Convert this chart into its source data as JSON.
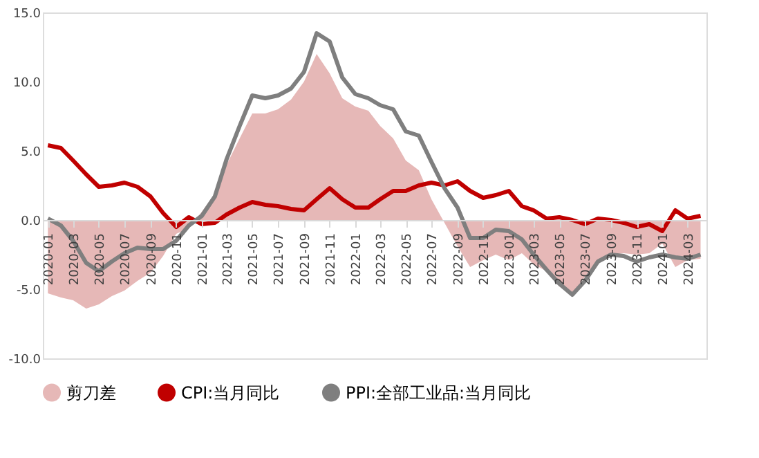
{
  "chart_data": {
    "type": "line",
    "x": [
      "2020-01",
      "2020-02",
      "2020-03",
      "2020-04",
      "2020-05",
      "2020-06",
      "2020-07",
      "2020-08",
      "2020-09",
      "2020-10",
      "2020-11",
      "2020-12",
      "2021-01",
      "2021-02",
      "2021-03",
      "2021-04",
      "2021-05",
      "2021-06",
      "2021-07",
      "2021-08",
      "2021-09",
      "2021-10",
      "2021-11",
      "2021-12",
      "2022-01",
      "2022-02",
      "2022-03",
      "2022-04",
      "2022-05",
      "2022-06",
      "2022-07",
      "2022-08",
      "2022-09",
      "2022-10",
      "2022-11",
      "2022-12",
      "2023-01",
      "2023-02",
      "2023-03",
      "2023-04",
      "2023-05",
      "2023-06",
      "2023-07",
      "2023-08",
      "2023-09",
      "2023-10",
      "2023-11",
      "2023-12",
      "2024-01",
      "2024-02",
      "2024-03",
      "2024-04"
    ],
    "series": [
      {
        "name": "剪刀差",
        "type": "area",
        "color": "#e6b8b7",
        "values": [
          -5.3,
          -5.6,
          -5.8,
          -6.4,
          -6.1,
          -5.5,
          -5.1,
          -4.4,
          -3.8,
          -2.6,
          -1.0,
          -0.6,
          0.6,
          1.9,
          4.0,
          5.9,
          7.7,
          7.7,
          8.0,
          8.7,
          10.0,
          12.0,
          10.6,
          8.8,
          8.2,
          7.9,
          6.8,
          5.9,
          4.3,
          3.6,
          1.5,
          -0.2,
          -1.9,
          -3.4,
          -2.9,
          -2.5,
          -2.9,
          -2.4,
          -3.2,
          -3.7,
          -4.8,
          -5.4,
          -4.1,
          -3.1,
          -2.5,
          -2.4,
          -2.5,
          -2.4,
          -1.7,
          -3.4,
          -2.9,
          -2.8
        ]
      },
      {
        "name": "CPI:当月同比",
        "type": "line",
        "color": "#c00000",
        "values": [
          5.4,
          5.2,
          4.3,
          3.3,
          2.4,
          2.5,
          2.7,
          2.4,
          1.7,
          0.5,
          -0.5,
          0.2,
          -0.3,
          -0.2,
          0.4,
          0.9,
          1.3,
          1.1,
          1.0,
          0.8,
          0.7,
          1.5,
          2.3,
          1.5,
          0.9,
          0.9,
          1.5,
          2.1,
          2.1,
          2.5,
          2.7,
          2.5,
          2.8,
          2.1,
          1.6,
          1.8,
          2.1,
          1.0,
          0.7,
          0.1,
          0.2,
          0.0,
          -0.3,
          0.1,
          0.0,
          -0.2,
          -0.5,
          -0.3,
          -0.8,
          0.7,
          0.1,
          0.3
        ]
      },
      {
        "name": "PPI:全部工业品:当月同比",
        "type": "line",
        "color": "#7f7f7f",
        "values": [
          0.1,
          -0.4,
          -1.5,
          -3.1,
          -3.7,
          -3.0,
          -2.4,
          -2.0,
          -2.1,
          -2.1,
          -1.5,
          -0.4,
          0.3,
          1.7,
          4.4,
          6.8,
          9.0,
          8.8,
          9.0,
          9.5,
          10.7,
          13.5,
          12.9,
          10.3,
          9.1,
          8.8,
          8.3,
          8.0,
          6.4,
          6.1,
          4.2,
          2.3,
          0.9,
          -1.3,
          -1.3,
          -0.7,
          -0.8,
          -1.4,
          -2.5,
          -3.6,
          -4.6,
          -5.4,
          -4.4,
          -3.0,
          -2.5,
          -2.6,
          -3.0,
          -2.7,
          -2.5,
          -2.7,
          -2.8,
          -2.5
        ]
      }
    ],
    "xlim": [
      "2019-12-20",
      "2024-04-15"
    ],
    "xticks": [
      "2020-01",
      "2020-03",
      "2020-05",
      "2020-07",
      "2020-09",
      "2020-11",
      "2021-01",
      "2021-03",
      "2021-05",
      "2021-07",
      "2021-09",
      "2021-11",
      "2022-01",
      "2022-03",
      "2022-05",
      "2022-07",
      "2022-09",
      "2022-11",
      "2023-01",
      "2023-03",
      "2023-05",
      "2023-07",
      "2023-09",
      "2023-11",
      "2024-01",
      "2024-03"
    ],
    "ylim": [
      -10,
      15
    ],
    "yticks": [
      {
        "value": -10,
        "label": "-10.0"
      },
      {
        "value": -5,
        "label": "-5.0"
      },
      {
        "value": 0,
        "label": "0.0"
      },
      {
        "value": 5,
        "label": "5.0"
      },
      {
        "value": 10,
        "label": "10.0"
      },
      {
        "value": 15,
        "label": "15.0"
      }
    ],
    "grid": false,
    "legend": "bottom"
  }
}
